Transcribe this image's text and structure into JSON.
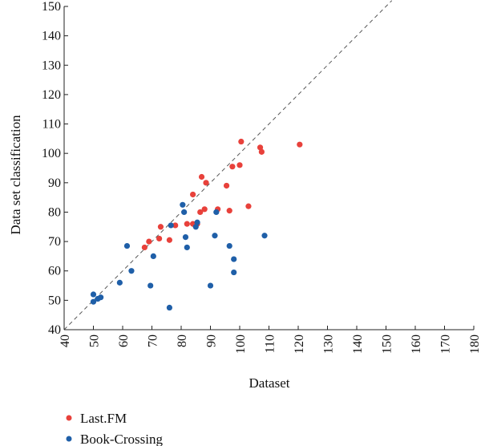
{
  "chart_data": {
    "type": "scatter",
    "xlabel": "Dataset",
    "ylabel": "Data set classification",
    "xlim": [
      40,
      180
    ],
    "ylim": [
      40,
      150
    ],
    "xticks": [
      40,
      50,
      60,
      70,
      80,
      90,
      100,
      110,
      120,
      130,
      140,
      150,
      160,
      170,
      180
    ],
    "yticks": [
      40,
      50,
      60,
      70,
      80,
      90,
      100,
      110,
      120,
      130,
      140,
      150
    ],
    "x_tick_rotation": "vertical",
    "reference_line": {
      "style": "dashed",
      "from": [
        40,
        40
      ],
      "to": [
        152,
        152
      ]
    },
    "grid": false,
    "legend_position": "bottom-left",
    "series": [
      {
        "name": "Last.FM",
        "color": "#e8413b",
        "points": [
          [
            67.5,
            68
          ],
          [
            69,
            70
          ],
          [
            72.5,
            71
          ],
          [
            73,
            75
          ],
          [
            76,
            70.5
          ],
          [
            78,
            75.5
          ],
          [
            82,
            76
          ],
          [
            84,
            76
          ],
          [
            84,
            86
          ],
          [
            85.5,
            76
          ],
          [
            86.5,
            80
          ],
          [
            87,
            92
          ],
          [
            88,
            81
          ],
          [
            88.5,
            90
          ],
          [
            92.5,
            81
          ],
          [
            95.5,
            89
          ],
          [
            96.5,
            80.5
          ],
          [
            97.5,
            95.5
          ],
          [
            100,
            96
          ],
          [
            100.5,
            104
          ],
          [
            103,
            82
          ],
          [
            107,
            102
          ],
          [
            107.5,
            100.5
          ],
          [
            120.5,
            103
          ]
        ]
      },
      {
        "name": "Book-Crossing",
        "color": "#1f5fa8",
        "points": [
          [
            50,
            52
          ],
          [
            50,
            49.5
          ],
          [
            51.5,
            50.5
          ],
          [
            52.5,
            51
          ],
          [
            59,
            56
          ],
          [
            61.5,
            68.5
          ],
          [
            63,
            60
          ],
          [
            69.5,
            55
          ],
          [
            70.5,
            65
          ],
          [
            76,
            47.5
          ],
          [
            76.5,
            75.5
          ],
          [
            80.5,
            82.5
          ],
          [
            81,
            80
          ],
          [
            81.5,
            71.5
          ],
          [
            82,
            68
          ],
          [
            85,
            75
          ],
          [
            85.5,
            76.5
          ],
          [
            90,
            55
          ],
          [
            91.5,
            72
          ],
          [
            92,
            80
          ],
          [
            96.5,
            68.5
          ],
          [
            98,
            59.5
          ],
          [
            98,
            64
          ],
          [
            108.5,
            72
          ]
        ]
      }
    ]
  }
}
